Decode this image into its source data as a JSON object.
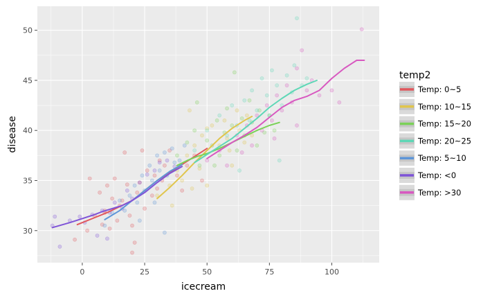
{
  "chart_data": {
    "type": "scatter",
    "xlabel": "icecream",
    "ylabel": "disease",
    "xlim": [
      -18,
      119
    ],
    "ylim": [
      26.8,
      52.4
    ],
    "x_ticks": [
      0,
      25,
      50,
      75,
      100
    ],
    "y_ticks": [
      30,
      35,
      40,
      45,
      50
    ],
    "x_tick_labels": [
      "0",
      "25",
      "50",
      "75",
      "100"
    ],
    "y_tick_labels": [
      "30",
      "35",
      "40",
      "45",
      "50"
    ],
    "grid": true,
    "legend": {
      "title": "temp2",
      "placement": "right"
    },
    "series": [
      {
        "name": "Temp: 0~5",
        "color": "#e1575d",
        "points": [
          [
            -3,
            29.1
          ],
          [
            2,
            30.0
          ],
          [
            5,
            31.5
          ],
          [
            7,
            33.8
          ],
          [
            8,
            30.6
          ],
          [
            9,
            31.8
          ],
          [
            10,
            34.5
          ],
          [
            11,
            30.2
          ],
          [
            12,
            33.2
          ],
          [
            13,
            35.2
          ],
          [
            14,
            31.0
          ],
          [
            16,
            33.0
          ],
          [
            17,
            37.8
          ],
          [
            18,
            34.6
          ],
          [
            19,
            31.5
          ],
          [
            20,
            30.5
          ],
          [
            21,
            28.8
          ],
          [
            22,
            33.8
          ],
          [
            23,
            34.8
          ],
          [
            24,
            38.0
          ],
          [
            25,
            32.2
          ],
          [
            26,
            36.0
          ],
          [
            28,
            33.5
          ],
          [
            29,
            35.5
          ],
          [
            30,
            34.2
          ],
          [
            31,
            37.0
          ],
          [
            32,
            35.0
          ],
          [
            33,
            36.5
          ],
          [
            35,
            38.0
          ],
          [
            38,
            35.5
          ],
          [
            40,
            34.0
          ],
          [
            42,
            36.5
          ],
          [
            45,
            37.5
          ],
          [
            48,
            35.0
          ],
          [
            20,
            27.8
          ],
          [
            9,
            32.0
          ],
          [
            3,
            35.2
          ],
          [
            15,
            32.5
          ]
        ],
        "trend": [
          [
            -2,
            30.6
          ],
          [
            5,
            31.3
          ],
          [
            10,
            31.8
          ],
          [
            15,
            32.4
          ],
          [
            20,
            33.0
          ],
          [
            25,
            34.0
          ],
          [
            30,
            35.0
          ],
          [
            35,
            35.8
          ],
          [
            40,
            36.6
          ],
          [
            45,
            37.4
          ],
          [
            50,
            38.2
          ]
        ]
      },
      {
        "name": "Temp: 10~15",
        "color": "#e0c54c",
        "points": [
          [
            30,
            33.5
          ],
          [
            35,
            34.5
          ],
          [
            38,
            36.0
          ],
          [
            40,
            35.0
          ],
          [
            42,
            37.5
          ],
          [
            44,
            34.2
          ],
          [
            45,
            38.5
          ],
          [
            47,
            36.2
          ],
          [
            48,
            39.5
          ],
          [
            50,
            34.5
          ],
          [
            52,
            40.5
          ],
          [
            55,
            38.5
          ],
          [
            57,
            41.0
          ],
          [
            58,
            39.2
          ],
          [
            60,
            36.5
          ],
          [
            62,
            42.0
          ],
          [
            63,
            40.0
          ],
          [
            65,
            38.8
          ],
          [
            66,
            41.5
          ],
          [
            68,
            39.5
          ],
          [
            43,
            42.0
          ],
          [
            50,
            40.2
          ],
          [
            36,
            32.5
          ],
          [
            59,
            38.0
          ]
        ],
        "trend": [
          [
            30,
            33.2
          ],
          [
            35,
            34.3
          ],
          [
            40,
            35.5
          ],
          [
            45,
            36.8
          ],
          [
            50,
            38.0
          ],
          [
            55,
            39.2
          ],
          [
            60,
            40.2
          ],
          [
            65,
            41.0
          ],
          [
            68,
            41.4
          ]
        ]
      },
      {
        "name": "Temp: 15~20",
        "color": "#7bd158",
        "points": [
          [
            38,
            37.5
          ],
          [
            42,
            38.8
          ],
          [
            45,
            40.0
          ],
          [
            47,
            36.5
          ],
          [
            50,
            39.0
          ],
          [
            52,
            38.5
          ],
          [
            54,
            41.0
          ],
          [
            55,
            37.5
          ],
          [
            57,
            39.8
          ],
          [
            58,
            42.2
          ],
          [
            60,
            40.5
          ],
          [
            61,
            45.8
          ],
          [
            62,
            38.0
          ],
          [
            64,
            41.2
          ],
          [
            65,
            39.5
          ],
          [
            67,
            43.0
          ],
          [
            68,
            40.8
          ],
          [
            70,
            38.5
          ],
          [
            71,
            42.0
          ],
          [
            73,
            39.8
          ],
          [
            75,
            41.5
          ],
          [
            77,
            40.0
          ],
          [
            46,
            42.8
          ],
          [
            53,
            36.5
          ]
        ],
        "trend": [
          [
            38,
            36.5
          ],
          [
            42,
            37.0
          ],
          [
            46,
            37.4
          ],
          [
            50,
            37.7
          ],
          [
            55,
            38.2
          ],
          [
            60,
            38.8
          ],
          [
            65,
            39.4
          ],
          [
            70,
            40.0
          ],
          [
            75,
            40.5
          ],
          [
            79,
            40.8
          ]
        ]
      },
      {
        "name": "Temp: 20~25",
        "color": "#5ed7b6",
        "points": [
          [
            45,
            38.0
          ],
          [
            50,
            40.0
          ],
          [
            55,
            41.5
          ],
          [
            58,
            39.5
          ],
          [
            60,
            42.5
          ],
          [
            62,
            40.5
          ],
          [
            65,
            43.0
          ],
          [
            67,
            41.0
          ],
          [
            68,
            44.0
          ],
          [
            70,
            42.0
          ],
          [
            72,
            45.2
          ],
          [
            74,
            43.5
          ],
          [
            75,
            41.5
          ],
          [
            76,
            46.0
          ],
          [
            78,
            44.5
          ],
          [
            80,
            42.5
          ],
          [
            82,
            45.5
          ],
          [
            84,
            43.8
          ],
          [
            85,
            46.5
          ],
          [
            88,
            44.5
          ],
          [
            90,
            45.2
          ],
          [
            86,
            51.2
          ],
          [
            63,
            36.0
          ],
          [
            79,
            37.0
          ]
        ],
        "trend": [
          [
            45,
            36.8
          ],
          [
            50,
            37.6
          ],
          [
            55,
            38.4
          ],
          [
            60,
            39.2
          ],
          [
            65,
            40.2
          ],
          [
            70,
            41.2
          ],
          [
            75,
            42.3
          ],
          [
            80,
            43.2
          ],
          [
            85,
            44.0
          ],
          [
            90,
            44.6
          ],
          [
            94,
            45.0
          ]
        ]
      },
      {
        "name": "Temp: 5~10",
        "color": "#5d95d8",
        "points": [
          [
            9,
            30.5
          ],
          [
            12,
            31.8
          ],
          [
            15,
            33.0
          ],
          [
            17,
            32.0
          ],
          [
            19,
            33.5
          ],
          [
            21,
            34.5
          ],
          [
            22,
            32.8
          ],
          [
            24,
            35.5
          ],
          [
            25,
            34.0
          ],
          [
            27,
            36.5
          ],
          [
            28,
            35.0
          ],
          [
            30,
            37.5
          ],
          [
            31,
            36.0
          ],
          [
            33,
            37.8
          ],
          [
            34,
            35.5
          ],
          [
            36,
            38.2
          ],
          [
            37,
            36.8
          ],
          [
            39,
            37.0
          ],
          [
            41,
            38.5
          ],
          [
            33,
            29.8
          ],
          [
            23,
            31.0
          ],
          [
            29,
            32.8
          ]
        ],
        "trend": [
          [
            9,
            31.1
          ],
          [
            15,
            32.0
          ],
          [
            20,
            33.0
          ],
          [
            25,
            34.0
          ],
          [
            30,
            35.0
          ],
          [
            35,
            35.9
          ],
          [
            40,
            36.6
          ]
        ]
      },
      {
        "name": "Temp: <0",
        "color": "#7e53d7",
        "points": [
          [
            -12,
            30.5
          ],
          [
            -11,
            31.4
          ],
          [
            -9,
            28.4
          ],
          [
            -5,
            31.0
          ],
          [
            -1,
            31.4
          ],
          [
            1,
            30.8
          ],
          [
            4,
            31.6
          ],
          [
            6,
            29.5
          ],
          [
            8,
            32.0
          ],
          [
            11,
            31.8
          ],
          [
            13,
            32.8
          ],
          [
            16,
            32.2
          ],
          [
            18,
            34.0
          ],
          [
            20,
            33.2
          ],
          [
            23,
            34.8
          ],
          [
            26,
            35.6
          ],
          [
            29,
            36.0
          ],
          [
            31,
            36.8
          ],
          [
            34,
            37.0
          ],
          [
            37,
            36.4
          ],
          [
            10,
            29.2
          ]
        ],
        "trend": [
          [
            -12,
            30.3
          ],
          [
            -5,
            30.8
          ],
          [
            0,
            31.2
          ],
          [
            5,
            31.6
          ],
          [
            8,
            31.9
          ],
          [
            12,
            32.2
          ],
          [
            16,
            32.5
          ],
          [
            20,
            33.0
          ],
          [
            25,
            33.8
          ],
          [
            30,
            34.8
          ],
          [
            35,
            35.7
          ],
          [
            40,
            36.4
          ]
        ]
      },
      {
        "name": "Temp: >30",
        "color": "#d858c0",
        "points": [
          [
            50,
            37.0
          ],
          [
            55,
            38.0
          ],
          [
            58,
            36.5
          ],
          [
            62,
            39.5
          ],
          [
            64,
            37.8
          ],
          [
            66,
            40.5
          ],
          [
            68,
            38.5
          ],
          [
            70,
            41.5
          ],
          [
            72,
            40.0
          ],
          [
            74,
            42.5
          ],
          [
            76,
            41.0
          ],
          [
            78,
            43.5
          ],
          [
            80,
            42.0
          ],
          [
            82,
            44.5
          ],
          [
            84,
            42.8
          ],
          [
            86,
            46.2
          ],
          [
            88,
            48.0
          ],
          [
            90,
            44.0
          ],
          [
            92,
            45.0
          ],
          [
            95,
            43.5
          ],
          [
            100,
            44.0
          ],
          [
            103,
            42.8
          ],
          [
            112,
            50.1
          ],
          [
            77,
            39.2
          ],
          [
            86,
            40.5
          ]
        ],
        "trend": [
          [
            50,
            37.2
          ],
          [
            55,
            38.0
          ],
          [
            60,
            38.8
          ],
          [
            65,
            39.5
          ],
          [
            70,
            40.3
          ],
          [
            75,
            41.3
          ],
          [
            80,
            42.3
          ],
          [
            85,
            43.0
          ],
          [
            90,
            43.4
          ],
          [
            95,
            44.0
          ],
          [
            100,
            45.2
          ],
          [
            105,
            46.2
          ],
          [
            110,
            47.0
          ],
          [
            113,
            47.0
          ]
        ]
      }
    ]
  }
}
